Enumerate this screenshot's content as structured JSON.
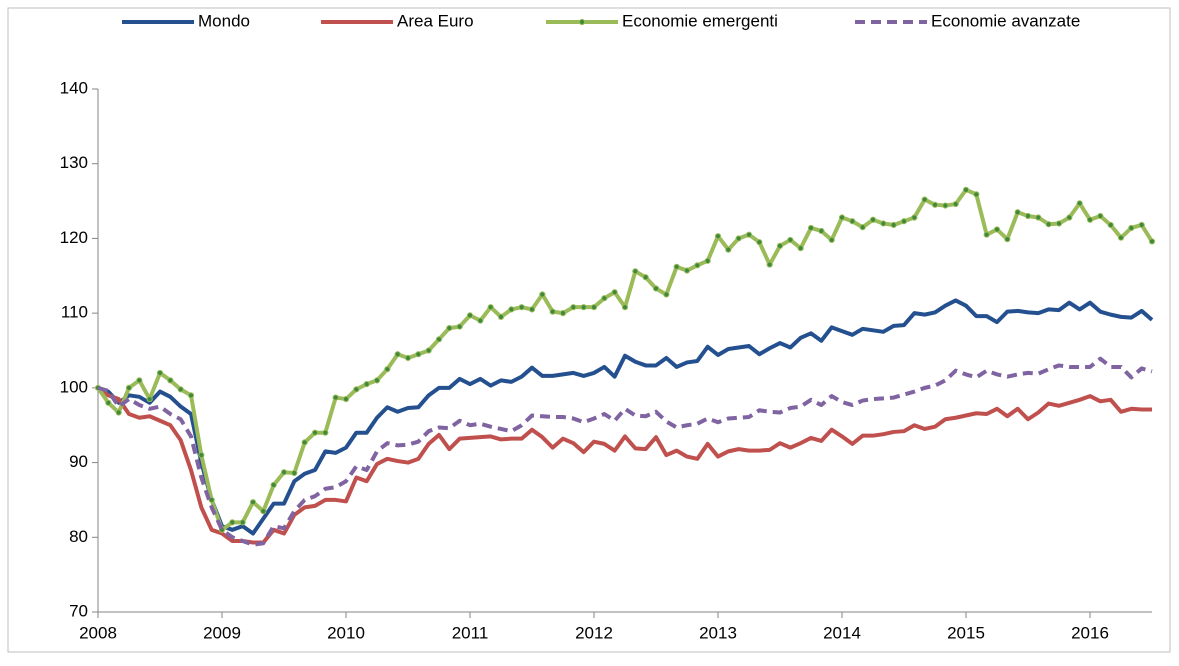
{
  "chart_data": {
    "type": "line",
    "categories": [
      "2008",
      null,
      null,
      null,
      null,
      null,
      null,
      null,
      null,
      null,
      null,
      null,
      "2009",
      null,
      null,
      null,
      null,
      null,
      null,
      null,
      null,
      null,
      null,
      null,
      "2010",
      null,
      null,
      null,
      null,
      null,
      null,
      null,
      null,
      null,
      null,
      null,
      "2011",
      null,
      null,
      null,
      null,
      null,
      null,
      null,
      null,
      null,
      null,
      null,
      "2012",
      null,
      null,
      null,
      null,
      null,
      null,
      null,
      null,
      null,
      null,
      null,
      "2013",
      null,
      null,
      null,
      null,
      null,
      null,
      null,
      null,
      null,
      null,
      null,
      "2014",
      null,
      null,
      null,
      null,
      null,
      null,
      null,
      null,
      null,
      null,
      null,
      "2015",
      null,
      null,
      null,
      null,
      null,
      null,
      null,
      null,
      null,
      null,
      null,
      "2016",
      null,
      null,
      null,
      null,
      null,
      null
    ],
    "series": [
      {
        "name": "Mondo",
        "color": "#24508f",
        "style": "solid",
        "marker": false,
        "values": [
          100,
          99.5,
          98,
          99,
          98.8,
          98,
          99.5,
          98.8,
          97.5,
          96.5,
          90,
          85,
          81.5,
          81,
          81.5,
          80.5,
          82.5,
          84.5,
          84.5,
          87.5,
          88.5,
          89,
          91.5,
          91.3,
          92,
          94,
          94,
          96,
          97.4,
          96.8,
          97.3,
          97.4,
          99,
          100,
          100,
          101.2,
          100.5,
          101.2,
          100.3,
          101,
          100.8,
          101.5,
          102.7,
          101.6,
          101.6,
          101.8,
          102,
          101.6,
          102,
          102.8,
          101.5,
          104.3,
          103.5,
          103,
          103,
          104,
          102.8,
          103.4,
          103.6,
          105.5,
          104.4,
          105.2,
          105.4,
          105.6,
          104.5,
          105.3,
          106,
          105.4,
          106.7,
          107.3,
          106.3,
          108.1,
          107.6,
          107.1,
          107.9,
          107.7,
          107.5,
          108.3,
          108.4,
          110,
          109.8,
          110.1,
          111,
          111.7,
          111,
          109.6,
          109.6,
          108.8,
          110.2,
          110.3,
          110.1,
          110,
          110.5,
          110.4,
          111.4,
          110.5,
          111.4,
          110.2,
          109.8,
          109.5,
          109.4,
          110.3,
          109.1
        ]
      },
      {
        "name": "Area Euro",
        "color": "#c0504d",
        "style": "solid",
        "marker": false,
        "values": [
          100,
          99,
          98.5,
          96.5,
          96,
          96.2,
          95.6,
          95,
          93,
          89,
          84,
          81,
          80.5,
          79.5,
          79.5,
          79.3,
          79.3,
          81,
          80.5,
          83,
          84,
          84.2,
          85,
          85,
          84.8,
          88,
          87.5,
          89.8,
          90.5,
          90.2,
          90,
          90.5,
          92.5,
          93.7,
          91.8,
          93.2,
          93.3,
          93.4,
          93.5,
          93.1,
          93.2,
          93.2,
          94.4,
          93.4,
          92,
          93.2,
          92.6,
          91.4,
          92.8,
          92.5,
          91.6,
          93.5,
          91.9,
          91.8,
          93.4,
          91,
          91.6,
          90.8,
          90.5,
          92.5,
          90.8,
          91.5,
          91.8,
          91.6,
          91.6,
          91.7,
          92.6,
          92,
          92.6,
          93.3,
          92.9,
          94.4,
          93.5,
          92.5,
          93.6,
          93.6,
          93.8,
          94.1,
          94.2,
          95,
          94.5,
          94.8,
          95.8,
          96,
          96.3,
          96.6,
          96.5,
          97.2,
          96.2,
          97.2,
          95.8,
          96.7,
          97.9,
          97.6,
          98,
          98.4,
          98.9,
          98.2,
          98.4,
          96.8,
          97.2,
          97.1,
          97.1
        ]
      },
      {
        "name": "Economie emergenti",
        "color": "#9bbb59",
        "style": "solid",
        "marker": true,
        "values": [
          100,
          98,
          96.7,
          100,
          101,
          98.5,
          102,
          101,
          99.8,
          99,
          91,
          85,
          81,
          82,
          82,
          84.7,
          83.5,
          87,
          88.7,
          88.6,
          92.7,
          94,
          94,
          98.7,
          98.5,
          99.8,
          100.5,
          101,
          102.5,
          104.5,
          104,
          104.5,
          105,
          106.5,
          108,
          108.2,
          109.7,
          109,
          110.8,
          109.5,
          110.5,
          110.8,
          110.5,
          112.5,
          110.2,
          110,
          110.8,
          110.8,
          110.8,
          112,
          112.8,
          110.8,
          115.6,
          114.8,
          113.3,
          112.5,
          116.2,
          115.7,
          116.4,
          117,
          120.3,
          118.5,
          120,
          120.5,
          119.5,
          116.5,
          119,
          119.8,
          118.7,
          121.4,
          121,
          119.8,
          122.8,
          122.3,
          121.5,
          122.5,
          122,
          121.8,
          122.3,
          122.8,
          125.2,
          124.5,
          124.4,
          124.6,
          126.5,
          125.9,
          120.5,
          121.2,
          119.9,
          123.5,
          123,
          122.8,
          121.9,
          122,
          122.8,
          124.7,
          122.5,
          123,
          121.8,
          120.1,
          121.4,
          121.8,
          119.6
        ]
      },
      {
        "name": "Economie avanzate",
        "color": "#8064a2",
        "style": "dashed",
        "marker": false,
        "values": [
          100,
          99.6,
          97.5,
          98.5,
          97.7,
          97.2,
          97.5,
          96.5,
          95.8,
          93.5,
          88,
          84,
          81,
          80,
          79.5,
          79,
          79.2,
          81.5,
          81.2,
          83.5,
          85,
          85.5,
          86.5,
          86.7,
          87.5,
          89.5,
          89,
          91.5,
          92.6,
          92.3,
          92.4,
          92.8,
          94.2,
          94.7,
          94.6,
          95.6,
          95,
          95.2,
          94.8,
          94.5,
          94.2,
          95,
          96.3,
          96.2,
          96.1,
          96.1,
          95.9,
          95.4,
          95.9,
          96.5,
          95.6,
          97.2,
          96.3,
          96.2,
          96.8,
          95.5,
          94.7,
          95,
          95.2,
          95.9,
          95.4,
          95.9,
          96,
          96.1,
          97,
          96.8,
          96.7,
          97.3,
          97.5,
          98.4,
          97.7,
          98.9,
          98.1,
          97.7,
          98.3,
          98.5,
          98.6,
          98.7,
          99.1,
          99.5,
          100,
          100.3,
          101,
          102.3,
          101.8,
          101.4,
          102.3,
          101.8,
          101.5,
          101.8,
          102,
          101.9,
          102.5,
          103,
          102.8,
          102.8,
          102.8,
          103.9,
          102.8,
          102.8,
          101.4,
          102.6,
          102.2
        ]
      }
    ],
    "ylim": [
      70,
      140
    ],
    "yticks": [
      70,
      80,
      90,
      100,
      110,
      120,
      130,
      140
    ],
    "grid": false,
    "legend": "top"
  }
}
